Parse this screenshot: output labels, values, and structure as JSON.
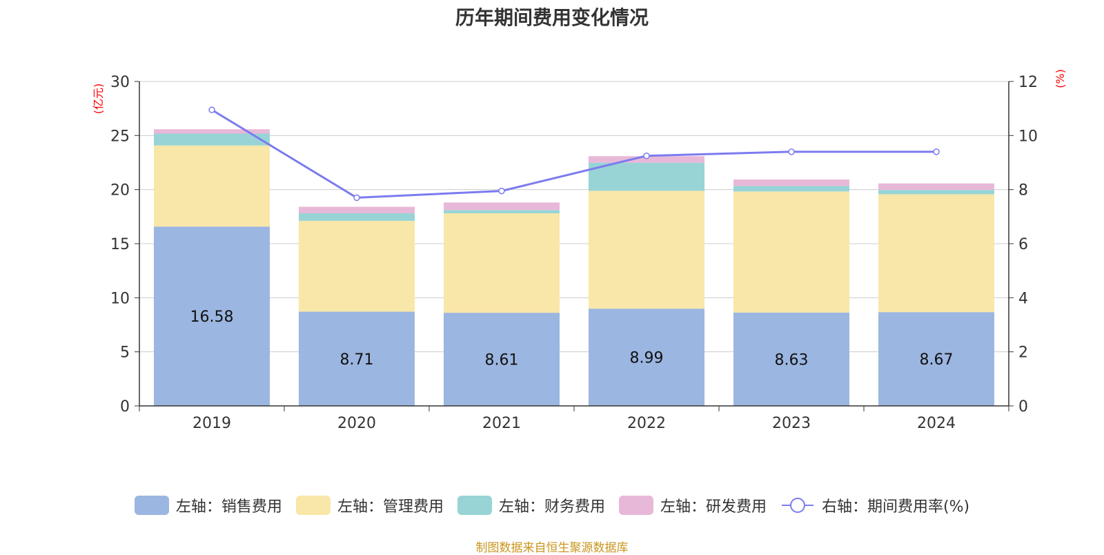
{
  "title": "历年期间费用变化情况",
  "source": "制图数据来自恒生聚源数据库",
  "chart_data": {
    "type": "bar",
    "stacked": true,
    "title": "历年期间费用变化情况",
    "categories": [
      "2019",
      "2020",
      "2021",
      "2022",
      "2023",
      "2024"
    ],
    "y_left": {
      "label": "(亿元)",
      "min": 0,
      "max": 30,
      "ticks": [
        "0",
        "5",
        "10",
        "15",
        "20",
        "25",
        "30"
      ]
    },
    "y_right": {
      "label": "(%)",
      "min": 0,
      "max": 12,
      "ticks": [
        "0",
        "2",
        "4",
        "6",
        "8",
        "10",
        "12"
      ]
    },
    "series": [
      {
        "name": "左轴：销售费用",
        "axis": "left",
        "color": "#9bb6e0",
        "values": [
          16.58,
          8.71,
          8.61,
          8.99,
          8.63,
          8.67
        ],
        "labels": [
          "16.58",
          "8.71",
          "8.61",
          "8.99",
          "8.63",
          "8.67"
        ]
      },
      {
        "name": "左轴：管理费用",
        "axis": "left",
        "color": "#f8e7a8",
        "values": [
          7.5,
          8.4,
          9.2,
          10.9,
          11.2,
          10.9
        ]
      },
      {
        "name": "左轴：财务费用",
        "axis": "left",
        "color": "#98d4d6",
        "values": [
          1.1,
          0.7,
          0.3,
          2.6,
          0.5,
          0.4
        ]
      },
      {
        "name": "左轴：研发费用",
        "axis": "left",
        "color": "#e8b8d8",
        "values": [
          0.4,
          0.6,
          0.7,
          0.6,
          0.6,
          0.6
        ]
      },
      {
        "name": "右轴：期间费用率(%)",
        "axis": "right",
        "type": "line",
        "color": "#7b7bef",
        "values": [
          10.95,
          7.7,
          7.95,
          9.25,
          9.4,
          9.4
        ]
      }
    ],
    "grid": true,
    "legend_position": "bottom"
  }
}
